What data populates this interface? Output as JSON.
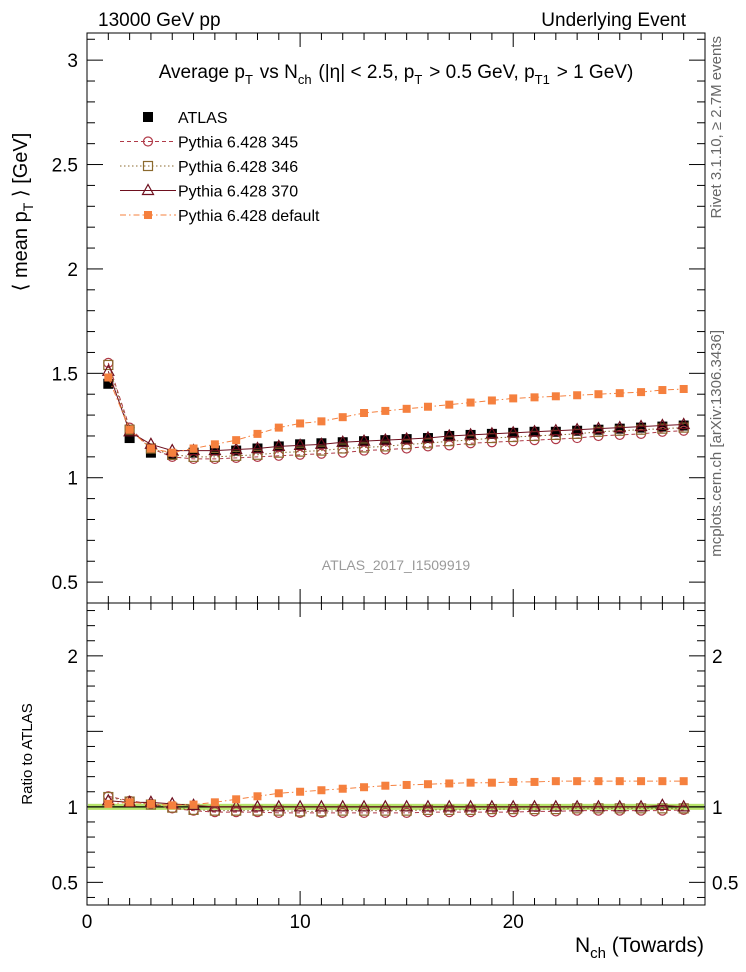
{
  "header": {
    "left": "13000 GeV pp",
    "right": "Underlying Event"
  },
  "side_labels": {
    "upper": "Rivet 3.1.10, ≥ 2.7M events",
    "lower": "mcplots.cern.ch [arXiv:1306.3436]"
  },
  "watermark": "ATLAS_2017_I1509919",
  "chart_data": {
    "type": "scatter",
    "title": {
      "text": "Average p_T vs N_ch (|η| < 2.5, p_T > 0.5 GeV, p_T1 > 1 GeV)",
      "parts": [
        {
          "t": "Average p",
          "sub": ""
        },
        {
          "t": "",
          "sub": "T"
        },
        {
          "t": " vs N",
          "sub": ""
        },
        {
          "t": "",
          "sub": "ch"
        },
        {
          "t": " (|η| < 2.5, p",
          "sub": ""
        },
        {
          "t": "",
          "sub": "T"
        },
        {
          "t": " > 0.5 GeV, p",
          "sub": ""
        },
        {
          "t": "",
          "sub": "T1"
        },
        {
          "t": " > 1 GeV)",
          "sub": ""
        }
      ]
    },
    "xlabel": {
      "main": "N",
      "sub": "ch",
      "rest": " (Towards)"
    },
    "ylabel": {
      "pre": "⟨ mean p",
      "sub": "T",
      "post": " ⟩ [GeV]"
    },
    "ratio_ylabel": "Ratio to ATLAS",
    "xlim": [
      0,
      29
    ],
    "ylim": [
      0.4,
      3.13
    ],
    "ratio_ylim": [
      0.35,
      2.35
    ],
    "xticks": [
      0,
      10,
      20
    ],
    "yticks": [
      0.5,
      1,
      1.5,
      2,
      2.5,
      3
    ],
    "yticklabels": [
      "0.5",
      "1",
      "1.5",
      "2",
      "2.5",
      "3"
    ],
    "ratio_yticks": [
      0.5,
      1,
      2
    ],
    "ratio_yticklabels": [
      "0.5",
      "1",
      "2"
    ],
    "legend_position": "top-left",
    "x": [
      1,
      2,
      3,
      4,
      5,
      6,
      7,
      8,
      9,
      10,
      11,
      12,
      13,
      14,
      15,
      16,
      17,
      18,
      19,
      20,
      21,
      22,
      23,
      24,
      25,
      26,
      27,
      28
    ],
    "series": [
      {
        "name": "ATLAS",
        "marker": "filled-square",
        "line": "none",
        "color": "#000000",
        "values": [
          1.45,
          1.19,
          1.12,
          1.11,
          1.12,
          1.13,
          1.13,
          1.14,
          1.15,
          1.16,
          1.165,
          1.17,
          1.175,
          1.18,
          1.185,
          1.19,
          1.2,
          1.205,
          1.21,
          1.215,
          1.22,
          1.22,
          1.225,
          1.23,
          1.235,
          1.24,
          1.245,
          1.25
        ],
        "ratio": [
          1,
          1,
          1,
          1,
          1,
          1,
          1,
          1,
          1,
          1,
          1,
          1,
          1,
          1,
          1,
          1,
          1,
          1,
          1,
          1,
          1,
          1,
          1,
          1,
          1,
          1,
          1,
          1
        ]
      },
      {
        "name": "Pythia 6.428 345",
        "marker": "open-circle",
        "line": "dashed",
        "color": "#b03a48",
        "values": [
          1.55,
          1.24,
          1.14,
          1.1,
          1.09,
          1.09,
          1.095,
          1.1,
          1.105,
          1.11,
          1.115,
          1.12,
          1.13,
          1.135,
          1.14,
          1.15,
          1.155,
          1.165,
          1.17,
          1.175,
          1.18,
          1.185,
          1.19,
          1.2,
          1.205,
          1.21,
          1.22,
          1.225
        ],
        "ratio": [
          1.07,
          1.04,
          1.02,
          0.99,
          0.975,
          0.965,
          0.965,
          0.965,
          0.96,
          0.96,
          0.96,
          0.96,
          0.96,
          0.96,
          0.96,
          0.965,
          0.965,
          0.965,
          0.965,
          0.965,
          0.97,
          0.97,
          0.975,
          0.975,
          0.975,
          0.975,
          0.975,
          0.98
        ]
      },
      {
        "name": "Pythia 6.428 346",
        "marker": "open-square",
        "line": "dotted",
        "color": "#8b6a2e",
        "values": [
          1.54,
          1.23,
          1.14,
          1.11,
          1.1,
          1.1,
          1.105,
          1.11,
          1.12,
          1.125,
          1.13,
          1.14,
          1.145,
          1.15,
          1.16,
          1.165,
          1.175,
          1.18,
          1.19,
          1.195,
          1.2,
          1.205,
          1.21,
          1.22,
          1.225,
          1.23,
          1.235,
          1.24
        ],
        "ratio": [
          1.065,
          1.035,
          1.015,
          0.995,
          0.98,
          0.975,
          0.975,
          0.975,
          0.975,
          0.97,
          0.97,
          0.975,
          0.975,
          0.975,
          0.975,
          0.98,
          0.98,
          0.98,
          0.985,
          0.985,
          0.985,
          0.985,
          0.99,
          0.99,
          0.99,
          0.99,
          0.99,
          0.99
        ]
      },
      {
        "name": "Pythia 6.428 370",
        "marker": "open-triangle",
        "line": "solid",
        "color": "#6e0f1e",
        "values": [
          1.51,
          1.22,
          1.16,
          1.13,
          1.13,
          1.13,
          1.135,
          1.14,
          1.15,
          1.155,
          1.16,
          1.17,
          1.175,
          1.18,
          1.185,
          1.19,
          1.2,
          1.205,
          1.21,
          1.215,
          1.22,
          1.225,
          1.23,
          1.235,
          1.24,
          1.245,
          1.25,
          1.255
        ],
        "ratio": [
          1.04,
          1.03,
          1.03,
          1.02,
          1.01,
          1.0,
          1.0,
          1.0,
          1.0,
          1.0,
          1.0,
          1.0,
          1.0,
          1.0,
          1.0,
          1.0,
          1.0,
          1.0,
          1.0,
          1.0,
          1.0,
          1.0,
          1.0,
          1.0,
          1.0,
          1.0,
          1.01,
          1.0
        ]
      },
      {
        "name": "Pythia 6.428 default",
        "marker": "filled-square-small",
        "line": "dashdot",
        "color": "#f5803e",
        "values": [
          1.48,
          1.23,
          1.14,
          1.12,
          1.14,
          1.16,
          1.18,
          1.21,
          1.24,
          1.26,
          1.27,
          1.29,
          1.31,
          1.32,
          1.33,
          1.34,
          1.35,
          1.36,
          1.37,
          1.38,
          1.385,
          1.39,
          1.395,
          1.4,
          1.405,
          1.41,
          1.42,
          1.425
        ],
        "ratio": [
          1.02,
          1.03,
          1.02,
          1.01,
          1.015,
          1.03,
          1.05,
          1.07,
          1.09,
          1.1,
          1.11,
          1.12,
          1.13,
          1.14,
          1.145,
          1.15,
          1.155,
          1.16,
          1.16,
          1.165,
          1.165,
          1.17,
          1.17,
          1.17,
          1.17,
          1.17,
          1.17,
          1.17
        ]
      }
    ]
  }
}
